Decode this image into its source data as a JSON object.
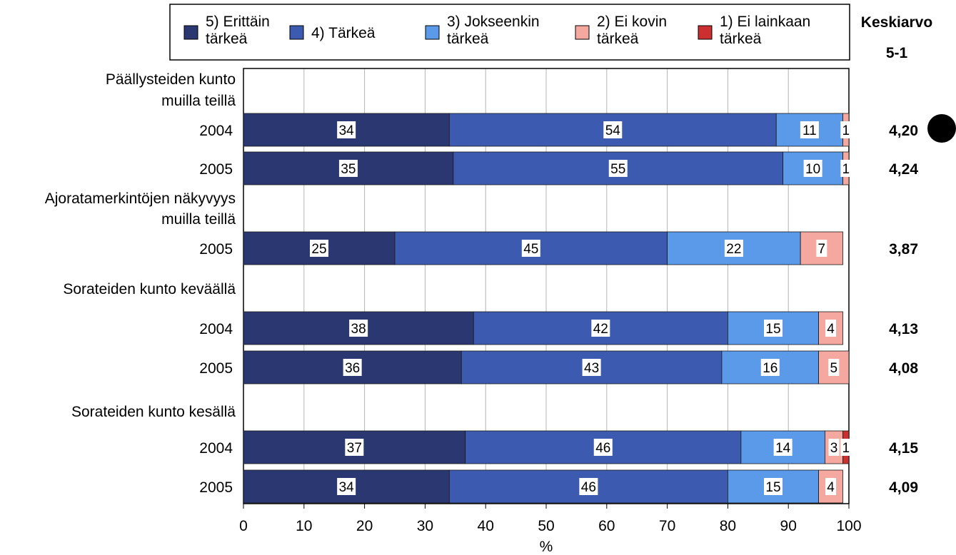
{
  "chart_data": {
    "type": "bar",
    "orientation": "horizontal",
    "stacked": true,
    "xlabel": "%",
    "xlim": [
      0,
      100
    ],
    "xticks": [
      0,
      10,
      20,
      30,
      40,
      50,
      60,
      70,
      80,
      90,
      100
    ],
    "grid": true,
    "legend_position": "top",
    "legend": [
      {
        "name": "5) Erittäin tärkeä",
        "lines": [
          "5) Erittäin",
          "tärkeä"
        ],
        "color": "#2b3770"
      },
      {
        "name": "4) Tärkeä",
        "lines": [
          "4) Tärkeä"
        ],
        "color": "#3d5ab1"
      },
      {
        "name": "3) Jokseenkin tärkeä",
        "lines": [
          "3) Jokseenkin",
          "tärkeä"
        ],
        "color": "#5b9ae8"
      },
      {
        "name": "2) Ei kovin tärkeä",
        "lines": [
          "2) Ei kovin",
          "tärkeä"
        ],
        "color": "#f5a8a0"
      },
      {
        "name": "1) Ei lainkaan tärkeä",
        "lines": [
          "1) Ei lainkaan",
          "tärkeä"
        ],
        "color": "#cc2f2f"
      }
    ],
    "mean_header": "Keskiarvo",
    "mean_subheader": "5-1",
    "groups": [
      {
        "title_lines": [
          "Päällysteiden kunto",
          "muilla teillä"
        ],
        "rows": [
          {
            "label": "2004",
            "values": [
              34,
              54,
              11,
              1,
              0
            ],
            "mean": "4,20"
          },
          {
            "label": "2005",
            "values": [
              35,
              55,
              10,
              1,
              0
            ],
            "mean": "4,24"
          }
        ]
      },
      {
        "title_lines": [
          "Ajoratamerkintöjen näkyvyys",
          "muilla teillä"
        ],
        "rows": [
          {
            "label": "2005",
            "values": [
              25,
              45,
              22,
              7,
              0
            ],
            "mean": "3,87"
          }
        ]
      },
      {
        "title_lines": [
          "Sorateiden kunto keväällä"
        ],
        "rows": [
          {
            "label": "2004",
            "values": [
              38,
              42,
              15,
              4,
              0
            ],
            "mean": "4,13"
          },
          {
            "label": "2005",
            "values": [
              36,
              43,
              16,
              5,
              0
            ],
            "mean": "4,08"
          }
        ]
      },
      {
        "title_lines": [
          "Sorateiden kunto kesällä"
        ],
        "rows": [
          {
            "label": "2004",
            "values": [
              37,
              46,
              14,
              3,
              1
            ],
            "mean": "4,15"
          },
          {
            "label": "2005",
            "values": [
              34,
              46,
              15,
              4,
              0
            ],
            "mean": "4,09"
          }
        ]
      }
    ]
  }
}
